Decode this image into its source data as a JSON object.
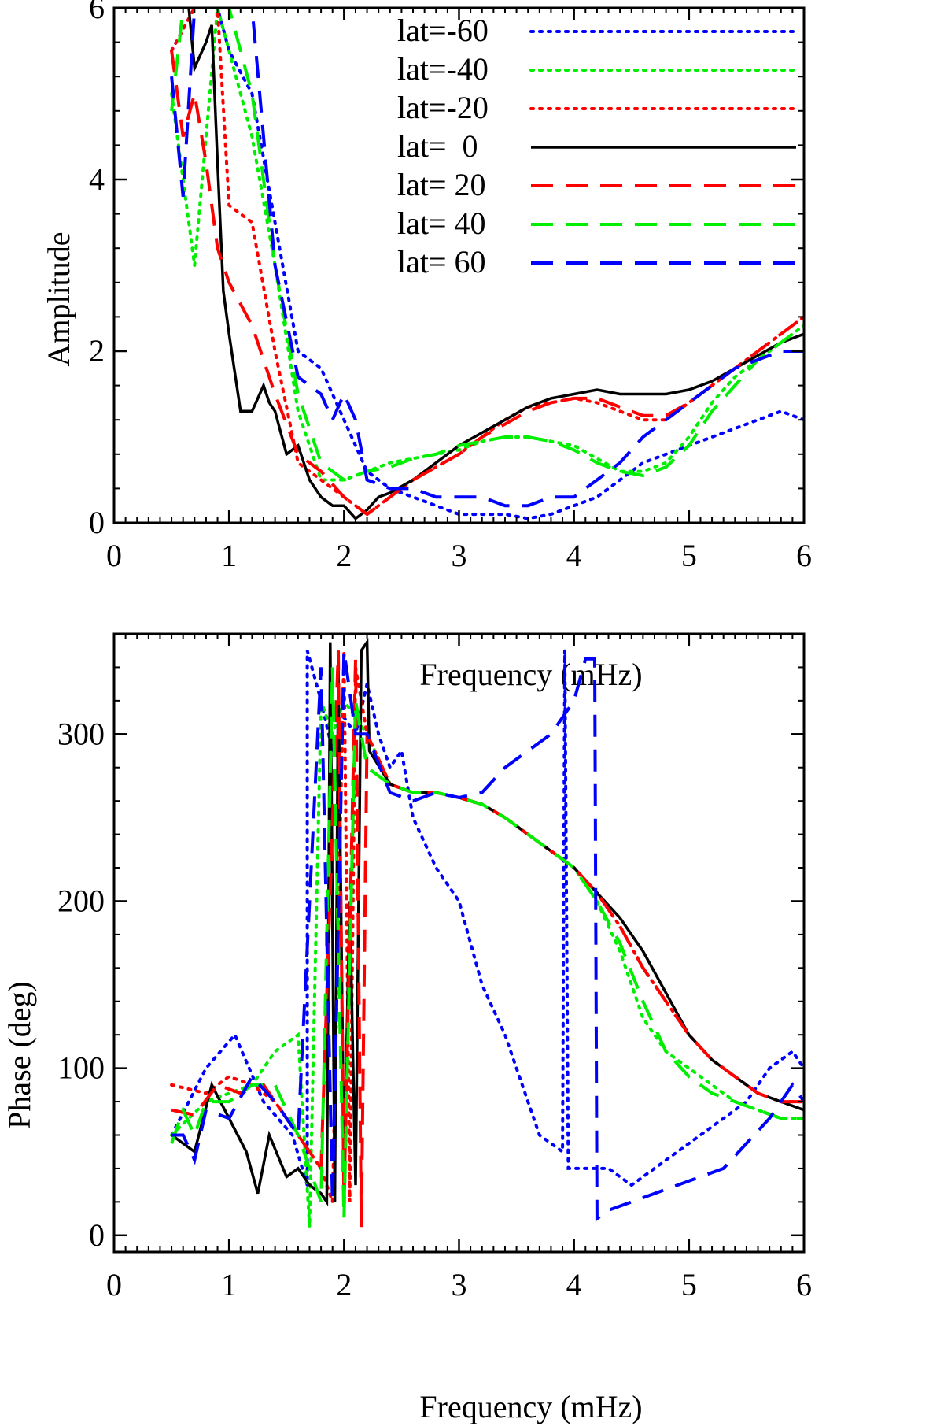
{
  "legend": [
    {
      "name": "lat=-60",
      "color": "#0000ff",
      "style": "dotted"
    },
    {
      "name": "lat=-40",
      "color": "#00ee00",
      "style": "dotted"
    },
    {
      "name": "lat=-20",
      "color": "#ff0000",
      "style": "dotted"
    },
    {
      "name": "lat=  0",
      "color": "#000000",
      "style": "solid"
    },
    {
      "name": "lat= 20",
      "color": "#ff0000",
      "style": "dashed"
    },
    {
      "name": "lat= 40",
      "color": "#00ee00",
      "style": "dashed"
    },
    {
      "name": "lat= 60",
      "color": "#0000ff",
      "style": "dashed"
    }
  ],
  "chart_data": [
    {
      "type": "line",
      "xlabel": "Frequency (mHz)",
      "ylabel": "Amplitude",
      "xlim": [
        0,
        6
      ],
      "ylim": [
        0,
        6
      ],
      "xticks": [
        0,
        1,
        2,
        3,
        4,
        5,
        6
      ],
      "yticks": [
        0,
        2,
        4,
        6
      ],
      "legend_position": "top-right",
      "series": [
        {
          "name": "lat=-60",
          "x": [
            0.5,
            0.7,
            0.9,
            1.0,
            1.2,
            1.4,
            1.6,
            1.8,
            2.0,
            2.2,
            2.4,
            2.6,
            2.8,
            3.0,
            3.2,
            3.4,
            3.6,
            3.8,
            4.0,
            4.2,
            4.4,
            4.6,
            4.8,
            5.0,
            5.2,
            5.4,
            5.6,
            5.8,
            6.0
          ],
          "y": [
            5.5,
            6.0,
            6.0,
            5.5,
            5.0,
            3.5,
            2.0,
            1.8,
            1.2,
            0.6,
            0.4,
            0.3,
            0.2,
            0.1,
            0.1,
            0.1,
            0.05,
            0.1,
            0.2,
            0.3,
            0.5,
            0.7,
            0.8,
            0.9,
            1.0,
            1.1,
            1.2,
            1.3,
            1.2
          ]
        },
        {
          "name": "lat=-40",
          "x": [
            0.5,
            0.7,
            0.9,
            1.0,
            1.2,
            1.4,
            1.6,
            1.8,
            2.0,
            2.2,
            2.4,
            2.6,
            2.8,
            3.0,
            3.2,
            3.4,
            3.6,
            3.8,
            4.0,
            4.2,
            4.4,
            4.6,
            4.8,
            5.0,
            5.2,
            5.4,
            5.6,
            5.8,
            6.0
          ],
          "y": [
            5.0,
            3.0,
            6.0,
            5.5,
            4.5,
            3.0,
            1.3,
            0.5,
            0.5,
            0.6,
            0.7,
            0.75,
            0.8,
            0.85,
            0.95,
            1.0,
            1.0,
            0.95,
            0.9,
            0.75,
            0.6,
            0.6,
            0.7,
            1.0,
            1.4,
            1.7,
            1.9,
            2.1,
            2.3
          ]
        },
        {
          "name": "lat=-20",
          "x": [
            0.5,
            0.7,
            0.9,
            1.0,
            1.2,
            1.4,
            1.6,
            1.8,
            2.0,
            2.2,
            2.4,
            2.6,
            2.8,
            3.0,
            3.2,
            3.4,
            3.6,
            3.8,
            4.0,
            4.2,
            4.4,
            4.6,
            4.8,
            5.0,
            5.2,
            5.4,
            5.6,
            5.8,
            6.0
          ],
          "y": [
            5.5,
            6.0,
            6.0,
            3.7,
            3.5,
            2.0,
            0.7,
            0.5,
            0.3,
            0.1,
            0.3,
            0.5,
            0.65,
            0.8,
            1.0,
            1.2,
            1.35,
            1.4,
            1.45,
            1.4,
            1.3,
            1.2,
            1.2,
            1.4,
            1.6,
            1.8,
            2.0,
            2.2,
            2.4
          ]
        },
        {
          "name": "lat=  0",
          "x": [
            0.65,
            0.7,
            0.8,
            0.85,
            0.9,
            0.95,
            1.0,
            1.1,
            1.2,
            1.3,
            1.35,
            1.4,
            1.5,
            1.6,
            1.7,
            1.8,
            1.9,
            2.0,
            2.1,
            2.2,
            2.3,
            2.4,
            2.6,
            2.8,
            3.0,
            3.2,
            3.4,
            3.6,
            3.8,
            4.0,
            4.2,
            4.4,
            4.6,
            4.8,
            5.0,
            5.2,
            5.4,
            5.6,
            5.8,
            6.0
          ],
          "y": [
            6.0,
            5.3,
            5.6,
            5.8,
            4.2,
            2.7,
            2.2,
            1.3,
            1.3,
            1.6,
            1.4,
            1.3,
            0.8,
            0.9,
            0.5,
            0.3,
            0.2,
            0.2,
            0.05,
            0.15,
            0.3,
            0.35,
            0.5,
            0.7,
            0.9,
            1.05,
            1.2,
            1.35,
            1.45,
            1.5,
            1.55,
            1.5,
            1.5,
            1.5,
            1.55,
            1.65,
            1.8,
            1.95,
            2.1,
            2.2
          ]
        },
        {
          "name": "lat= 20",
          "x": [
            0.5,
            0.6,
            0.7,
            0.8,
            0.9,
            1.0,
            1.2,
            1.4,
            1.6,
            1.8,
            2.0,
            2.2,
            2.4,
            2.6,
            2.8,
            3.0,
            3.2,
            3.4,
            3.6,
            3.8,
            4.0,
            4.2,
            4.4,
            4.6,
            4.8,
            5.0,
            5.2,
            5.4,
            5.6,
            5.8,
            6.0
          ],
          "y": [
            5.5,
            4.5,
            5.0,
            4.2,
            3.2,
            2.8,
            2.3,
            1.5,
            0.8,
            0.6,
            0.3,
            0.1,
            0.3,
            0.5,
            0.65,
            0.8,
            1.0,
            1.15,
            1.3,
            1.4,
            1.45,
            1.45,
            1.35,
            1.25,
            1.25,
            1.4,
            1.6,
            1.8,
            2.0,
            2.2,
            2.4
          ]
        },
        {
          "name": "lat= 40",
          "x": [
            0.5,
            0.6,
            0.7,
            0.8,
            0.9,
            1.0,
            1.2,
            1.4,
            1.6,
            1.8,
            2.0,
            2.2,
            2.4,
            2.6,
            2.8,
            3.0,
            3.2,
            3.4,
            3.6,
            3.8,
            4.0,
            4.2,
            4.4,
            4.6,
            4.8,
            5.0,
            5.2,
            5.4,
            5.6,
            5.8,
            6.0
          ],
          "y": [
            4.8,
            6.0,
            6.0,
            6.0,
            6.0,
            6.0,
            5.0,
            3.0,
            1.5,
            0.7,
            0.5,
            0.6,
            0.65,
            0.75,
            0.8,
            0.9,
            0.95,
            1.0,
            1.0,
            0.95,
            0.85,
            0.7,
            0.6,
            0.55,
            0.65,
            0.9,
            1.3,
            1.6,
            1.9,
            2.1,
            2.3
          ]
        },
        {
          "name": "lat= 60",
          "x": [
            0.5,
            0.6,
            0.7,
            0.8,
            0.9,
            1.0,
            1.2,
            1.4,
            1.6,
            1.8,
            1.9,
            2.0,
            2.1,
            2.2,
            2.4,
            2.6,
            2.8,
            3.0,
            3.2,
            3.4,
            3.6,
            3.8,
            4.0,
            4.2,
            4.4,
            4.6,
            4.8,
            5.0,
            5.2,
            5.4,
            5.6,
            5.8,
            6.0
          ],
          "y": [
            5.2,
            3.8,
            6.0,
            6.0,
            6.0,
            6.0,
            6.0,
            3.0,
            1.7,
            1.5,
            1.2,
            1.5,
            1.2,
            0.5,
            0.4,
            0.4,
            0.3,
            0.3,
            0.3,
            0.2,
            0.2,
            0.3,
            0.3,
            0.5,
            0.7,
            1.0,
            1.2,
            1.4,
            1.6,
            1.8,
            1.9,
            2.0,
            2.0
          ]
        }
      ]
    },
    {
      "type": "line",
      "xlabel": "Frequency (mHz)",
      "ylabel": "Phase (deg)",
      "xlim": [
        0,
        6
      ],
      "ylim": [
        -10,
        360
      ],
      "xticks": [
        0,
        1,
        2,
        3,
        4,
        5,
        6
      ],
      "yticks": [
        0,
        100,
        200,
        300
      ],
      "series": [
        {
          "name": "lat=-60",
          "x": [
            0.5,
            0.8,
            1.05,
            1.3,
            1.55,
            1.68,
            1.68,
            1.8,
            1.9,
            2.0,
            2.1,
            2.2,
            2.3,
            2.4,
            2.5,
            2.6,
            2.8,
            3.0,
            3.2,
            3.4,
            3.6,
            3.7,
            3.9,
            3.92,
            3.95,
            4.1,
            4.3,
            4.5,
            4.7,
            4.9,
            5.1,
            5.3,
            5.5,
            5.7,
            5.9,
            6.0
          ],
          "y": [
            60,
            100,
            120,
            80,
            60,
            30,
            350,
            320,
            290,
            310,
            300,
            330,
            300,
            280,
            290,
            250,
            220,
            200,
            150,
            120,
            80,
            60,
            50,
            350,
            40,
            40,
            40,
            30,
            40,
            50,
            60,
            70,
            80,
            100,
            110,
            100
          ]
        },
        {
          "name": "lat=-40",
          "x": [
            0.5,
            0.8,
            1.0,
            1.2,
            1.4,
            1.6,
            1.7,
            1.8,
            1.9,
            2.0,
            2.1,
            2.2,
            2.4,
            2.6,
            2.8,
            3.0,
            3.2,
            3.4,
            3.6,
            3.8,
            4.0,
            4.2,
            4.4,
            4.6,
            4.8,
            5.0,
            5.2,
            5.4,
            5.6,
            5.8,
            6.0
          ],
          "y": [
            60,
            80,
            85,
            90,
            110,
            120,
            5,
            320,
            300,
            320,
            310,
            300,
            270,
            265,
            265,
            262,
            258,
            250,
            240,
            230,
            220,
            200,
            170,
            130,
            110,
            100,
            90,
            80,
            75,
            70,
            70
          ]
        },
        {
          "name": "lat=-20",
          "x": [
            0.5,
            0.8,
            1.0,
            1.2,
            1.4,
            1.6,
            1.8,
            1.9,
            2.0,
            2.05,
            2.1,
            2.2,
            2.4,
            2.6,
            2.8,
            3.0,
            3.2,
            3.4,
            3.6,
            3.8,
            4.0,
            4.2,
            4.4,
            4.6,
            4.8,
            5.0,
            5.2,
            5.4,
            5.6,
            5.8,
            6.0
          ],
          "y": [
            90,
            85,
            95,
            90,
            80,
            60,
            40,
            20,
            350,
            20,
            340,
            300,
            270,
            265,
            265,
            262,
            258,
            250,
            240,
            230,
            220,
            205,
            185,
            160,
            140,
            120,
            105,
            95,
            85,
            80,
            80
          ]
        },
        {
          "name": "lat=  0",
          "x": [
            0.5,
            0.7,
            0.85,
            1.0,
            1.15,
            1.25,
            1.35,
            1.5,
            1.6,
            1.7,
            1.8,
            1.85,
            1.88,
            1.92,
            1.95,
            2.0,
            2.05,
            2.1,
            2.15,
            2.2,
            2.22,
            2.4,
            2.6,
            2.8,
            3.0,
            3.2,
            3.4,
            3.6,
            3.8,
            4.0,
            4.2,
            4.4,
            4.6,
            4.8,
            5.0,
            5.2,
            5.4,
            5.6,
            5.8,
            6.0
          ],
          "y": [
            60,
            50,
            90,
            70,
            50,
            25,
            60,
            35,
            40,
            30,
            25,
            20,
            355,
            20,
            340,
            40,
            200,
            30,
            350,
            355,
            290,
            270,
            265,
            265,
            262,
            258,
            250,
            240,
            230,
            220,
            205,
            190,
            170,
            145,
            120,
            105,
            95,
            85,
            80,
            75
          ]
        },
        {
          "name": "lat= 20",
          "x": [
            0.5,
            0.7,
            0.9,
            1.1,
            1.3,
            1.5,
            1.7,
            1.8,
            1.95,
            2.0,
            2.1,
            2.15,
            2.2,
            2.4,
            2.6,
            2.8,
            3.0,
            3.2,
            3.4,
            3.6,
            3.8,
            4.0,
            4.2,
            4.4,
            4.6,
            4.8,
            5.0,
            5.2,
            5.4,
            5.6,
            5.8,
            6.0
          ],
          "y": [
            75,
            72,
            90,
            85,
            90,
            70,
            50,
            40,
            350,
            20,
            345,
            5,
            300,
            270,
            265,
            265,
            262,
            258,
            250,
            240,
            230,
            220,
            205,
            185,
            160,
            140,
            120,
            105,
            95,
            85,
            80,
            80
          ]
        },
        {
          "name": "lat= 40",
          "x": [
            0.5,
            0.6,
            0.7,
            0.8,
            1.0,
            1.2,
            1.4,
            1.6,
            1.8,
            1.9,
            2.0,
            2.1,
            2.2,
            2.4,
            2.6,
            2.8,
            3.0,
            3.2,
            3.4,
            3.6,
            3.8,
            4.0,
            4.2,
            4.4,
            4.6,
            4.8,
            5.0,
            5.2,
            5.4,
            5.6,
            5.8,
            6.0
          ],
          "y": [
            55,
            75,
            60,
            80,
            80,
            90,
            90,
            60,
            20,
            340,
            10,
            320,
            280,
            270,
            265,
            265,
            262,
            258,
            250,
            240,
            230,
            220,
            200,
            175,
            140,
            110,
            95,
            85,
            80,
            75,
            70,
            70
          ]
        },
        {
          "name": "lat= 60",
          "x": [
            0.5,
            0.6,
            0.7,
            0.8,
            1.0,
            1.2,
            1.4,
            1.6,
            1.8,
            1.9,
            2.0,
            2.1,
            2.2,
            2.4,
            2.6,
            2.8,
            3.0,
            3.2,
            3.4,
            3.6,
            3.8,
            4.0,
            4.1,
            4.18,
            4.2,
            4.3,
            4.5,
            4.7,
            4.9,
            5.1,
            5.3,
            5.5,
            5.7,
            5.9,
            6.0
          ],
          "y": [
            60,
            60,
            45,
            75,
            70,
            95,
            80,
            60,
            340,
            20,
            350,
            300,
            300,
            265,
            260,
            265,
            262,
            265,
            280,
            290,
            300,
            320,
            345,
            345,
            10,
            15,
            20,
            25,
            30,
            35,
            40,
            55,
            70,
            90,
            80
          ]
        }
      ]
    }
  ]
}
